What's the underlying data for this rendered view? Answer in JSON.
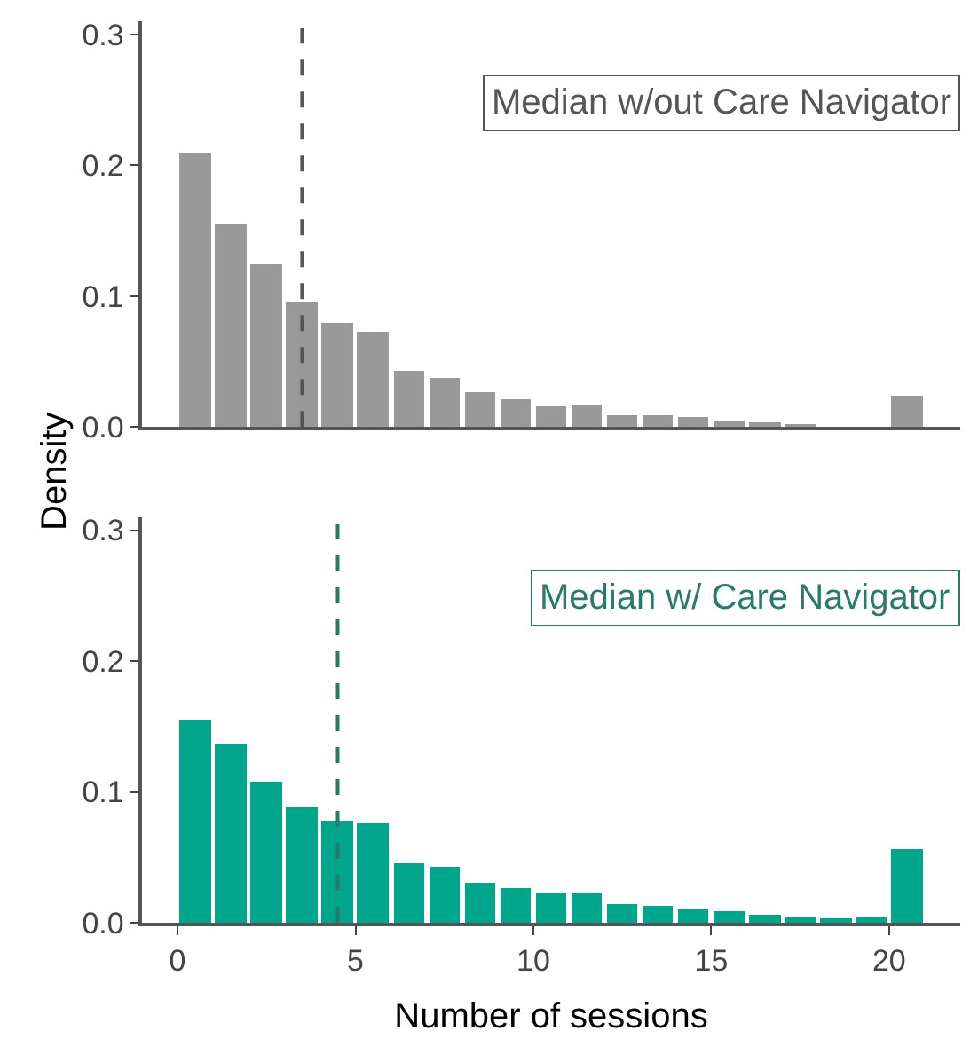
{
  "chart_data": [
    {
      "type": "histogram",
      "ylabel": "Density",
      "bins": [
        0,
        1,
        2,
        3,
        4,
        5,
        6,
        7,
        8,
        9,
        10,
        11,
        12,
        13,
        14,
        15,
        16,
        17,
        18,
        19,
        20,
        21
      ],
      "values": [
        0.21,
        0.155,
        0.124,
        0.096,
        0.079,
        0.073,
        0.043,
        0.037,
        0.027,
        0.021,
        0.016,
        0.017,
        0.009,
        0.009,
        0.007,
        0.005,
        0.003,
        0.001,
        0,
        0,
        0.024
      ],
      "color": "#999999",
      "xlim": [
        -1,
        22
      ],
      "ylim": [
        0,
        0.31
      ],
      "yticks": [
        {
          "value": 0,
          "label": "0.0"
        },
        0.1,
        0.2,
        0.3
      ],
      "tick_labels": "y",
      "ref_lines": [
        {
          "axis": "x",
          "value": 3.5,
          "label": "Median w/out Care Navigator",
          "color": "#555555",
          "line_style": "dashed"
        }
      ]
    },
    {
      "type": "histogram",
      "xlabel": "Number of sessions",
      "bins": [
        0,
        1,
        2,
        3,
        4,
        5,
        6,
        7,
        8,
        9,
        10,
        11,
        12,
        13,
        14,
        15,
        16,
        17,
        18,
        19,
        20,
        21
      ],
      "values": [
        0.155,
        0.137,
        0.108,
        0.089,
        0.078,
        0.077,
        0.045,
        0.043,
        0.03,
        0.027,
        0.022,
        0.022,
        0.014,
        0.013,
        0.01,
        0.009,
        0.006,
        0.005,
        0.004,
        0.005,
        0.057
      ],
      "color": "#00a68c",
      "xlim": [
        -1,
        22
      ],
      "ylim": [
        0,
        0.31
      ],
      "xticks": [
        0,
        5,
        10,
        15,
        20
      ],
      "yticks": [
        {
          "value": 0,
          "label": "0.0"
        },
        0.1,
        0.2,
        0.3
      ],
      "ref_lines": [
        {
          "axis": "x",
          "value": 4.5,
          "label": "Median w/ Care Navigator",
          "color": "#2a7a6a",
          "line_style": "dashed"
        }
      ]
    }
  ]
}
